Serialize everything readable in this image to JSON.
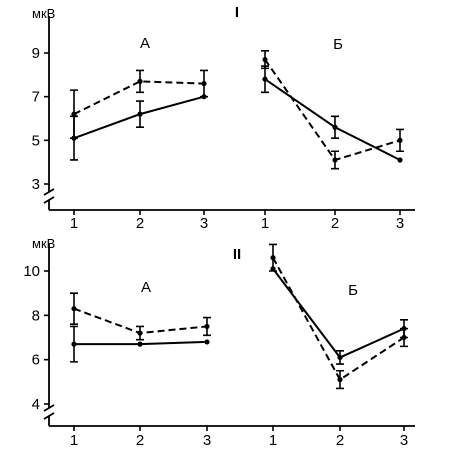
{
  "chart_data": [
    {
      "type": "line",
      "panel": "I",
      "ylabel": "мкВ",
      "ylim": [
        2,
        10
      ],
      "yticks": [
        3,
        5,
        7,
        9
      ],
      "groups": [
        {
          "label": "А",
          "x": [
            "1",
            "2",
            "3"
          ],
          "series": [
            {
              "style": "dashed",
              "values": [
                6.2,
                7.7,
                7.6
              ],
              "errors": [
                1.1,
                0.5,
                0.6
              ]
            },
            {
              "style": "solid",
              "values": [
                5.1,
                6.2,
                7.0
              ],
              "errors": [
                1.0,
                0.6,
                0.0
              ]
            }
          ]
        },
        {
          "label": "Б",
          "x": [
            "1",
            "2",
            "3"
          ],
          "series": [
            {
              "style": "dashed",
              "values": [
                8.7,
                4.1,
                5.0
              ],
              "errors": [
                0.4,
                0.4,
                0.5
              ]
            },
            {
              "style": "solid",
              "values": [
                7.8,
                5.6,
                4.1
              ],
              "errors": [
                0.6,
                0.5,
                0.0
              ]
            }
          ]
        }
      ]
    },
    {
      "type": "line",
      "panel": "II",
      "ylabel": "мкВ",
      "ylim": [
        3,
        11
      ],
      "yticks": [
        4,
        6,
        8,
        10
      ],
      "groups": [
        {
          "label": "А",
          "x": [
            "1",
            "2",
            "3"
          ],
          "series": [
            {
              "style": "dashed",
              "values": [
                8.3,
                7.2,
                7.5
              ],
              "errors": [
                0.7,
                0.3,
                0.4
              ]
            },
            {
              "style": "solid",
              "values": [
                6.7,
                6.7,
                6.8
              ],
              "errors": [
                0.8,
                0.0,
                0.0
              ]
            }
          ]
        },
        {
          "label": "Б",
          "x": [
            "1",
            "2",
            "3"
          ],
          "series": [
            {
              "style": "dashed",
              "values": [
                10.6,
                5.1,
                7.0
              ],
              "errors": [
                0.6,
                0.4,
                0.4
              ]
            },
            {
              "style": "solid",
              "values": [
                10.1,
                6.1,
                7.4
              ],
              "errors": [
                0.0,
                0.3,
                0.4
              ]
            }
          ]
        }
      ]
    }
  ]
}
